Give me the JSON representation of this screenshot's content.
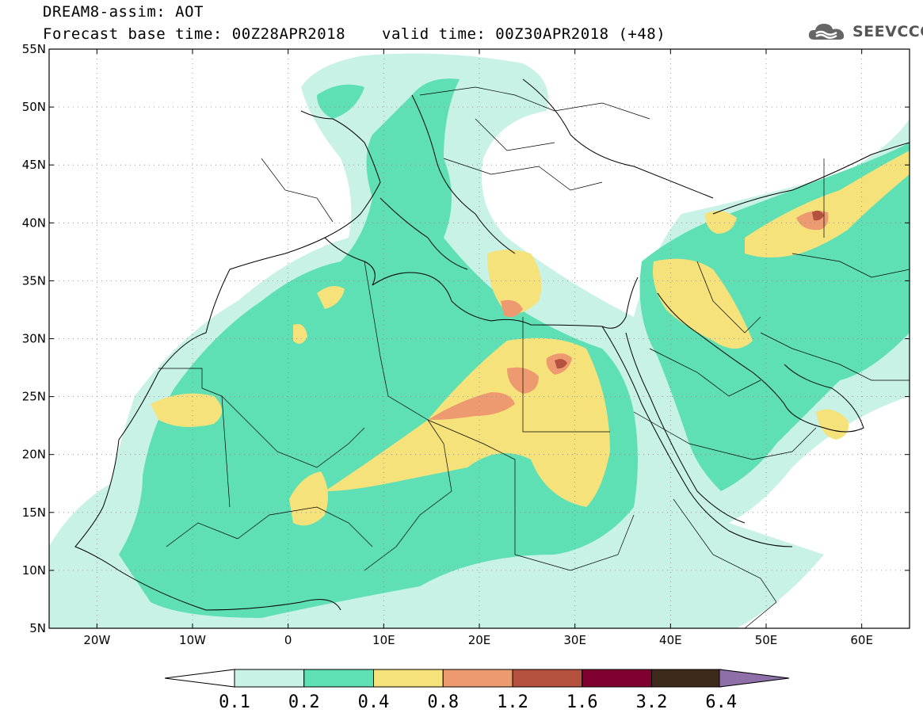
{
  "header": {
    "title": "DREAM8-assim: AOT",
    "base_time": "Forecast base time: 00Z28APR2018",
    "valid_time": "valid time: 00Z30APR2018 (+48)",
    "logo_text": "SEEVCCC"
  },
  "map": {
    "lat_labels": [
      "55N",
      "50N",
      "45N",
      "40N",
      "35N",
      "30N",
      "25N",
      "20N",
      "15N",
      "10N",
      "5N"
    ],
    "lon_labels": [
      "20W",
      "10W",
      "0",
      "10E",
      "20E",
      "30E",
      "40E",
      "50E",
      "60E"
    ],
    "lon_range": [
      -25,
      65
    ],
    "lat_range": [
      5,
      55
    ],
    "variable": "AOT"
  },
  "colorbar": {
    "labels": [
      "0.1",
      "0.2",
      "0.4",
      "0.8",
      "1.2",
      "1.6",
      "3.2",
      "6.4"
    ],
    "colors": [
      "#c8f2e6",
      "#5ee0b4",
      "#f5e27a",
      "#ee9a70",
      "#b4513f",
      "#800030",
      "#3d2a1a",
      "#8f6fa8"
    ],
    "under_color": "#ffffff"
  },
  "colors": {
    "c1": "#c8f2e6",
    "c2": "#5ee0b4",
    "c3": "#f5e27a",
    "c4": "#ee9a70",
    "c5": "#b4513f",
    "c6": "#800030"
  }
}
